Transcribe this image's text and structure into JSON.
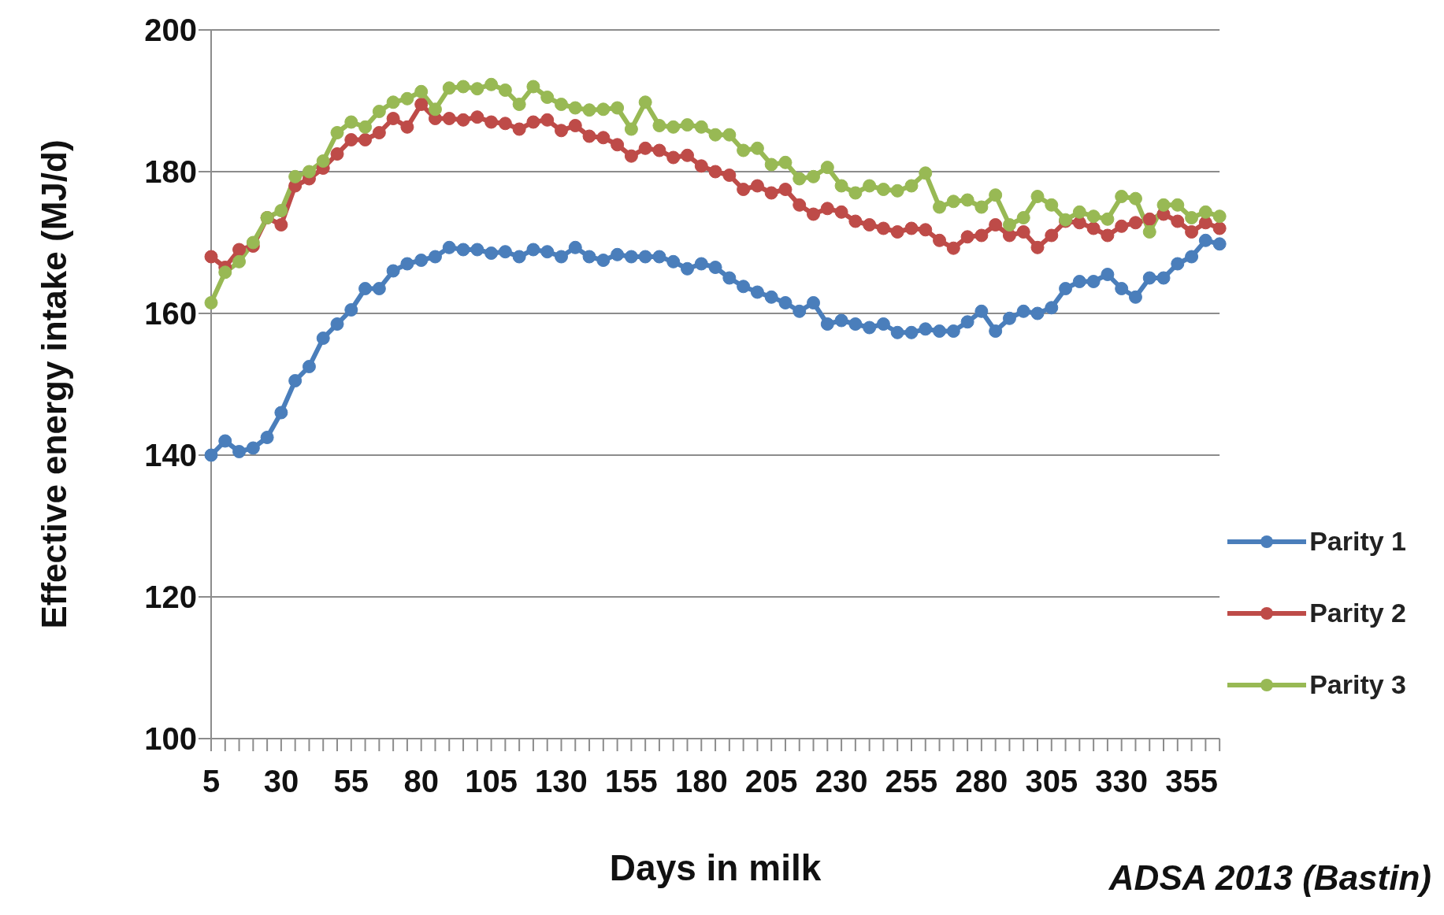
{
  "chart_data": {
    "type": "line",
    "xlabel": "Days in milk",
    "ylabel": "Effective energy intake (MJ/d)",
    "categories": [
      "5",
      null,
      null,
      null,
      null,
      "30",
      null,
      null,
      null,
      null,
      "55",
      null,
      null,
      null,
      null,
      "80",
      null,
      null,
      null,
      null,
      "105",
      null,
      null,
      null,
      null,
      "130",
      null,
      null,
      null,
      null,
      "155",
      null,
      null,
      null,
      null,
      "180",
      null,
      null,
      null,
      null,
      "205",
      null,
      null,
      null,
      null,
      "230",
      null,
      null,
      null,
      null,
      "255",
      null,
      null,
      null,
      null,
      "280",
      null,
      null,
      null,
      null,
      "305",
      null,
      null,
      null,
      null,
      "330",
      null,
      null,
      null,
      null,
      "355",
      null,
      null
    ],
    "series": [
      {
        "name": "Parity 1",
        "color": "#4a7ebb",
        "values": [
          140,
          142,
          140.5,
          141,
          142.5,
          146,
          150.5,
          152.5,
          156.5,
          158.5,
          160.5,
          163.5,
          163.5,
          166,
          167,
          167.5,
          168,
          169.3,
          169,
          169,
          168.5,
          168.7,
          168,
          169,
          168.7,
          168,
          169.3,
          168,
          167.5,
          168.3,
          168,
          168,
          168,
          167.3,
          166.3,
          167,
          166.5,
          165,
          163.8,
          163,
          162.3,
          161.5,
          160.3,
          161.5,
          158.5,
          159,
          158.5,
          158,
          158.5,
          157.3,
          157.3,
          157.8,
          157.5,
          157.5,
          158.8,
          160.3,
          157.5,
          159.3,
          160.3,
          160,
          160.8,
          163.5,
          164.5,
          164.5,
          165.5,
          163.5,
          162.3,
          165,
          165,
          167,
          168,
          170.3,
          169.8
        ]
      },
      {
        "name": "Parity 2",
        "color": "#be4b48",
        "values": [
          168,
          166.5,
          169,
          169.5,
          173.5,
          172.5,
          178,
          179,
          180.5,
          182.5,
          184.5,
          184.5,
          185.5,
          187.5,
          186.3,
          189.5,
          187.5,
          187.5,
          187.3,
          187.7,
          187,
          186.8,
          186,
          187,
          187.3,
          185.8,
          186.5,
          185,
          184.8,
          183.8,
          182.2,
          183.3,
          183,
          182,
          182.3,
          180.8,
          180,
          179.5,
          177.5,
          178,
          177,
          177.5,
          175.3,
          174,
          174.8,
          174.3,
          173,
          172.5,
          172,
          171.5,
          172,
          171.8,
          170.3,
          169.2,
          170.8,
          171,
          172.5,
          171,
          171.5,
          169.3,
          171,
          173,
          172.8,
          172,
          171,
          172.3,
          172.8,
          173.3,
          174,
          173,
          171.5,
          172.8,
          172
        ]
      },
      {
        "name": "Parity 3",
        "color": "#98b954",
        "values": [
          161.5,
          165.8,
          167.3,
          170,
          173.5,
          174.5,
          179.3,
          180,
          181.5,
          185.5,
          187,
          186.3,
          188.5,
          189.8,
          190.3,
          191.3,
          188.8,
          191.8,
          192,
          191.7,
          192.3,
          191.5,
          189.5,
          192,
          190.5,
          189.5,
          189,
          188.7,
          188.8,
          189,
          186,
          189.8,
          186.5,
          186.3,
          186.6,
          186.3,
          185.2,
          185.2,
          183,
          183.3,
          181,
          181.3,
          179,
          179.3,
          180.6,
          178,
          177,
          178,
          177.5,
          177.3,
          178,
          179.8,
          175,
          175.8,
          176,
          175,
          176.7,
          172.5,
          173.5,
          176.5,
          175.3,
          173.2,
          174.3,
          173.7,
          173.3,
          176.5,
          176.2,
          171.5,
          175.3,
          175.3,
          173.5,
          174.3,
          173.7
        ]
      }
    ],
    "ylim": [
      100,
      200
    ],
    "yticks": [
      100,
      120,
      140,
      160,
      180,
      200
    ],
    "grid": "y",
    "legend": "right",
    "marker": "circle",
    "line_style": "solid",
    "annotations": [
      "ADSA 2013 (Bastin)"
    ]
  }
}
